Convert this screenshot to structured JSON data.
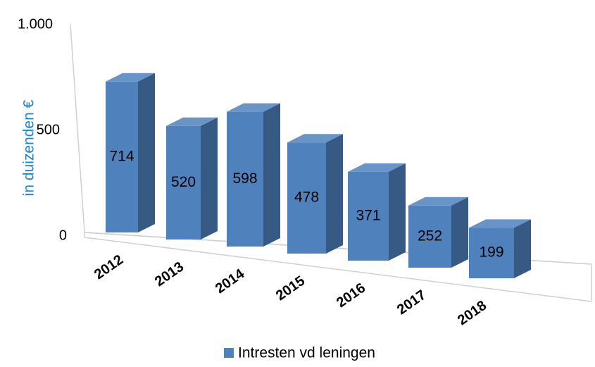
{
  "chart_data": {
    "type": "bar3d",
    "y_label": "in duizenden €",
    "categories": [
      "2012",
      "2013",
      "2014",
      "2015",
      "2016",
      "2017",
      "2018"
    ],
    "series": [
      {
        "name": "Intresten vd leningen",
        "color": "#4f81bd",
        "values": [
          714,
          520,
          598,
          478,
          371,
          252,
          199
        ]
      }
    ],
    "ylim": [
      0,
      1000
    ],
    "yticks": [
      0,
      500,
      {
        "value": 1000,
        "label": "1.000"
      }
    ],
    "legend": "bottom"
  }
}
